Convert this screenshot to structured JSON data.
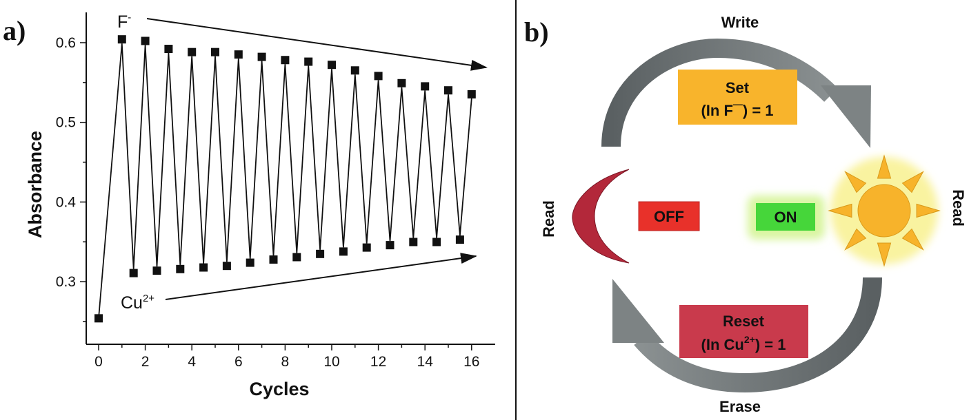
{
  "chart_data": {
    "type": "line",
    "panel_label": "a)",
    "xlabel": "Cycles",
    "ylabel": "Absorbance",
    "xlim": [
      0,
      16
    ],
    "ylim": [
      0.22,
      0.63
    ],
    "x_ticks": [
      "0",
      "2",
      "4",
      "6",
      "8",
      "10",
      "12",
      "14",
      "16"
    ],
    "y_ticks": [
      "0.3",
      "0.4",
      "0.5",
      "0.6"
    ],
    "grid": false,
    "series": [
      {
        "name": "Absorbance",
        "marker": "square",
        "x": [
          0,
          1,
          1.5,
          2,
          2.5,
          3,
          3.5,
          4,
          4.5,
          5,
          5.5,
          6,
          6.5,
          7,
          7.5,
          8,
          8.5,
          9,
          9.5,
          10,
          10.5,
          11,
          11.5,
          12,
          12.5,
          13,
          13.5,
          14,
          14.5,
          15,
          15.5,
          16
        ],
        "y": [
          0.254,
          0.599,
          0.316,
          0.597,
          0.319,
          0.587,
          0.321,
          0.583,
          0.323,
          0.583,
          0.325,
          0.58,
          0.329,
          0.577,
          0.333,
          0.573,
          0.336,
          0.571,
          0.34,
          0.567,
          0.343,
          0.56,
          0.348,
          0.553,
          0.351,
          0.544,
          0.355,
          0.54,
          0.355,
          0.535,
          0.358,
          0.53
        ]
      }
    ],
    "annotations": {
      "f_label": "F",
      "f_sup": "-",
      "cu_label": "Cu",
      "cu_sup": "2+"
    }
  },
  "diagram": {
    "panel_label": "b)",
    "write": "Write",
    "erase": "Erase",
    "read_left": "Read",
    "read_right": "Read",
    "set_title": "Set",
    "set_expr_pre": "(In F",
    "set_expr_sup": "—",
    "set_expr_post": ") = 1",
    "reset_title": "Reset",
    "reset_expr_pre": "(In Cu",
    "reset_expr_sup": "2+",
    "reset_expr_post": ") = 1",
    "off": "OFF",
    "on": "ON",
    "colors": {
      "set": "#f8b42c",
      "reset": "#c93a4c",
      "off": "#e8312a",
      "on": "#46d63a",
      "sun": "#f7b32b",
      "moon": "#b3283a",
      "arrow": "#6e7475"
    }
  }
}
